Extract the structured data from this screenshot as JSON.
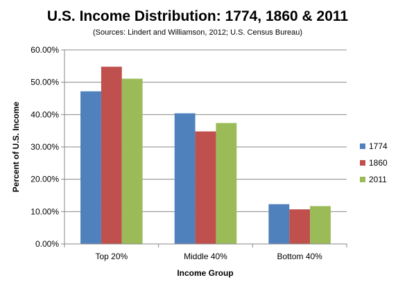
{
  "chart_data": {
    "type": "bar",
    "title": "U.S. Income Distribution: 1774, 1860 & 2011",
    "subtitle": "(Sources: Lindert and Williamson, 2012; U.S. Census Bureau)",
    "xlabel": "Income Group",
    "ylabel": "Percent of U.S. Income",
    "categories": [
      "Top 20%",
      "Middle 40%",
      "Bottom 40%"
    ],
    "series": [
      {
        "name": "1774",
        "color": "#4F81BD",
        "values": [
          47.2,
          40.4,
          12.3
        ]
      },
      {
        "name": "1860",
        "color": "#C0504D",
        "values": [
          54.8,
          34.8,
          10.7
        ]
      },
      {
        "name": "2011",
        "color": "#9BBB59",
        "values": [
          51.1,
          37.4,
          11.7
        ]
      }
    ],
    "ylim": [
      0,
      60
    ],
    "yticks": [
      "0.00%",
      "10.00%",
      "20.00%",
      "30.00%",
      "40.00%",
      "50.00%",
      "60.00%"
    ],
    "ytick_values": [
      0,
      10,
      20,
      30,
      40,
      50,
      60
    ],
    "grid": true,
    "legend_position": "right"
  }
}
